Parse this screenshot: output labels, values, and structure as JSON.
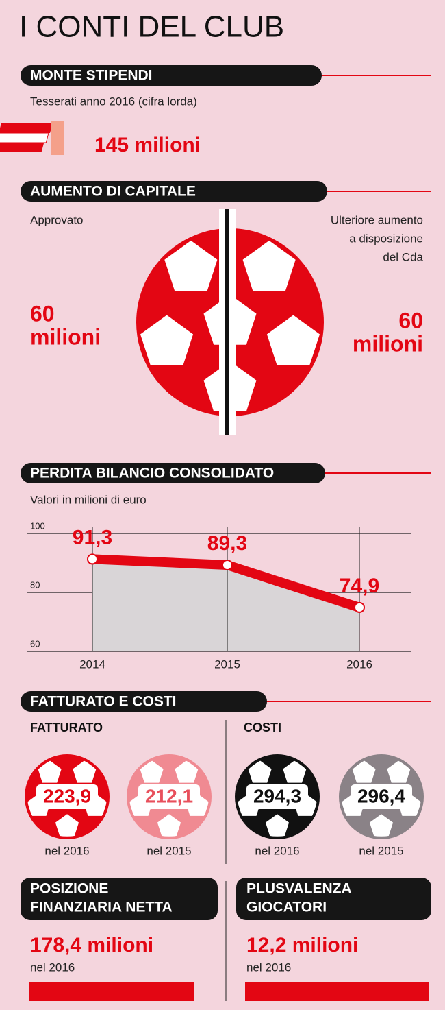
{
  "title": "I CONTI DEL CLUB",
  "monte_stipendi": {
    "heading": "MONTE STIPENDI",
    "subtitle": "Tesserati anno 2016 (cifra lorda)",
    "value": "145 milioni"
  },
  "aumento_capitale": {
    "heading": "AUMENTO DI CAPITALE",
    "left_label": "Approvato",
    "left_value": [
      "60",
      "milioni"
    ],
    "right_label": [
      "Ulteriore aumento",
      "a disposizione",
      "del Cda"
    ],
    "right_value": [
      "60",
      "milioni"
    ]
  },
  "chart_data": {
    "type": "line",
    "title": "PERDITA BILANCIO CONSOLIDATO",
    "subtitle": "Valori in milioni di euro",
    "categories": [
      "2014",
      "2015",
      "2016"
    ],
    "values": [
      91.3,
      89.3,
      74.9
    ],
    "value_labels": [
      "91,3",
      "89,3",
      "74,9"
    ],
    "color": "#e30613",
    "ylim": [
      60,
      100
    ],
    "yticks": [
      60,
      80,
      100
    ],
    "grid": true
  },
  "fatturato_costi": {
    "heading": "FATTURATO E COSTI",
    "fatturato": {
      "label": "FATTURATO",
      "items": [
        {
          "value": "223,9",
          "year": "nel 2016"
        },
        {
          "value": "212,1",
          "year": "nel 2015"
        }
      ]
    },
    "costi": {
      "label": "COSTI",
      "items": [
        {
          "value": "294,3",
          "year": "nel 2016"
        },
        {
          "value": "296,4",
          "year": "nel 2015"
        }
      ]
    }
  },
  "posizione": {
    "heading": [
      "POSIZIONE",
      "FINANZIARIA NETTA"
    ],
    "value": "178,4 milioni",
    "year": "nel 2016"
  },
  "plusvalenza": {
    "heading": [
      "PLUSVALENZA",
      "GIOCATORI"
    ],
    "value": "12,2 milioni",
    "year": "nel 2016"
  }
}
